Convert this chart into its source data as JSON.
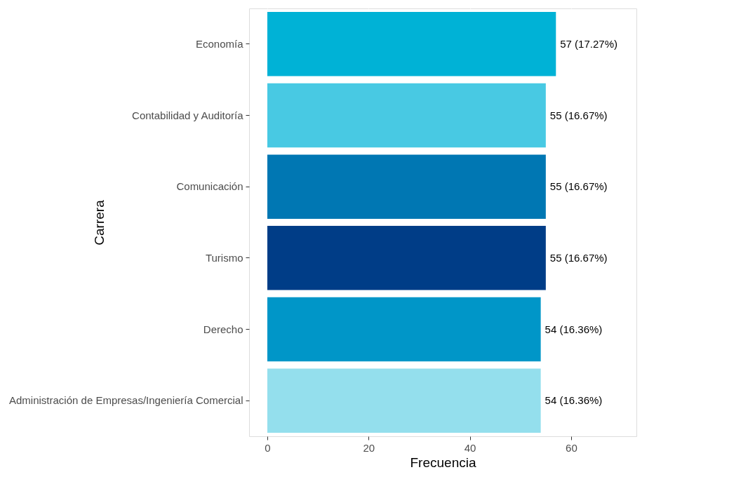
{
  "chart_data": {
    "type": "bar",
    "orientation": "horizontal",
    "categories": [
      "Economía",
      "Contabilidad y Auditoría",
      "Comunicación",
      "Turismo",
      "Derecho",
      "Administración de Empresas/Ingeniería Comercial"
    ],
    "values": [
      57,
      55,
      55,
      55,
      54,
      54
    ],
    "colors": [
      "#00b2d6",
      "#48c9e3",
      "#0077b3",
      "#003d87",
      "#0096c8",
      "#94dfed"
    ],
    "value_labels": [
      "57 (17.27%)",
      "55 (16.67%)",
      "55 (16.67%)",
      "55 (16.67%)",
      "54 (16.36%)",
      "54 (16.36%)"
    ],
    "xlim": [
      -3.6,
      72.9
    ],
    "xticks": [
      0,
      20,
      40,
      60
    ],
    "xlabel": "Frecuencia",
    "ylabel": "Carrera",
    "grid": "x"
  }
}
